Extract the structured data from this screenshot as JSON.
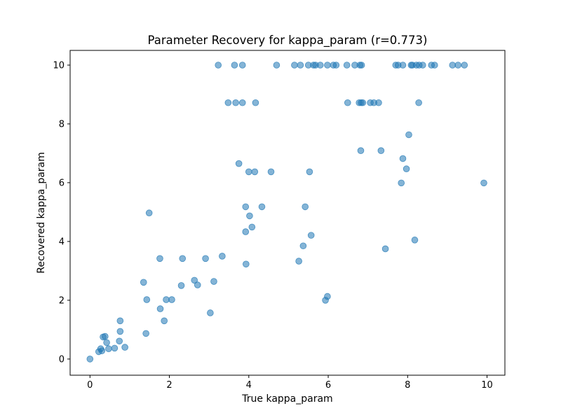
{
  "chart_data": {
    "type": "scatter",
    "title": "Parameter Recovery for kappa_param (r=0.773)",
    "xlabel": "True kappa_param",
    "ylabel": "Recovered kappa_param",
    "xlim": [
      -0.5,
      10.45
    ],
    "ylim": [
      -0.55,
      10.5
    ],
    "xticks": [
      0,
      2,
      4,
      6,
      8,
      10
    ],
    "yticks": [
      0,
      2,
      4,
      6,
      8,
      10
    ],
    "grid": false,
    "marker_color": "#1f77b4",
    "marker_alpha": 0.55,
    "points": [
      [
        0.0,
        0.0
      ],
      [
        0.22,
        0.25
      ],
      [
        0.27,
        0.35
      ],
      [
        0.3,
        0.28
      ],
      [
        0.33,
        0.75
      ],
      [
        0.38,
        0.77
      ],
      [
        0.42,
        0.56
      ],
      [
        0.47,
        0.35
      ],
      [
        0.62,
        0.37
      ],
      [
        0.74,
        0.61
      ],
      [
        0.76,
        0.94
      ],
      [
        0.76,
        1.3
      ],
      [
        0.88,
        0.4
      ],
      [
        1.35,
        2.61
      ],
      [
        1.41,
        0.87
      ],
      [
        1.43,
        2.02
      ],
      [
        1.49,
        4.97
      ],
      [
        1.76,
        3.42
      ],
      [
        1.77,
        1.71
      ],
      [
        1.87,
        1.3
      ],
      [
        1.92,
        2.02
      ],
      [
        2.06,
        2.02
      ],
      [
        2.3,
        2.5
      ],
      [
        2.33,
        3.42
      ],
      [
        2.63,
        2.68
      ],
      [
        2.71,
        2.52
      ],
      [
        2.91,
        3.42
      ],
      [
        3.03,
        1.57
      ],
      [
        3.12,
        2.64
      ],
      [
        3.23,
        10.0
      ],
      [
        3.33,
        3.5
      ],
      [
        3.48,
        8.72
      ],
      [
        3.64,
        10.0
      ],
      [
        3.67,
        8.72
      ],
      [
        3.75,
        6.65
      ],
      [
        3.84,
        10.0
      ],
      [
        3.84,
        8.72
      ],
      [
        3.92,
        5.18
      ],
      [
        3.92,
        4.33
      ],
      [
        3.93,
        3.23
      ],
      [
        4.0,
        6.37
      ],
      [
        4.02,
        4.87
      ],
      [
        4.08,
        4.49
      ],
      [
        4.15,
        6.37
      ],
      [
        4.17,
        8.72
      ],
      [
        4.33,
        5.18
      ],
      [
        4.56,
        6.37
      ],
      [
        4.7,
        10.0
      ],
      [
        5.15,
        10.0
      ],
      [
        5.26,
        3.33
      ],
      [
        5.3,
        10.0
      ],
      [
        5.37,
        3.85
      ],
      [
        5.42,
        5.18
      ],
      [
        5.5,
        10.0
      ],
      [
        5.53,
        6.37
      ],
      [
        5.57,
        4.21
      ],
      [
        5.63,
        10.0
      ],
      [
        5.68,
        10.0
      ],
      [
        5.8,
        10.0
      ],
      [
        5.93,
        2.0
      ],
      [
        5.98,
        2.13
      ],
      [
        5.98,
        10.0
      ],
      [
        6.13,
        10.0
      ],
      [
        6.2,
        10.0
      ],
      [
        6.47,
        10.0
      ],
      [
        6.49,
        8.72
      ],
      [
        6.67,
        10.0
      ],
      [
        6.78,
        8.72
      ],
      [
        6.8,
        10.0
      ],
      [
        6.82,
        7.09
      ],
      [
        6.83,
        8.72
      ],
      [
        6.84,
        10.0
      ],
      [
        6.87,
        8.72
      ],
      [
        7.06,
        8.72
      ],
      [
        7.15,
        8.72
      ],
      [
        7.27,
        8.72
      ],
      [
        7.33,
        7.09
      ],
      [
        7.44,
        3.75
      ],
      [
        7.7,
        10.0
      ],
      [
        7.76,
        10.0
      ],
      [
        7.84,
        5.99
      ],
      [
        7.88,
        10.0
      ],
      [
        7.88,
        6.82
      ],
      [
        7.97,
        6.47
      ],
      [
        8.03,
        7.63
      ],
      [
        8.09,
        10.0
      ],
      [
        8.12,
        10.0
      ],
      [
        8.18,
        4.05
      ],
      [
        8.22,
        10.0
      ],
      [
        8.28,
        8.72
      ],
      [
        8.29,
        10.0
      ],
      [
        8.38,
        10.0
      ],
      [
        8.6,
        10.0
      ],
      [
        8.68,
        10.0
      ],
      [
        9.13,
        10.0
      ],
      [
        9.27,
        10.0
      ],
      [
        9.43,
        10.0
      ],
      [
        9.92,
        5.99
      ]
    ]
  }
}
